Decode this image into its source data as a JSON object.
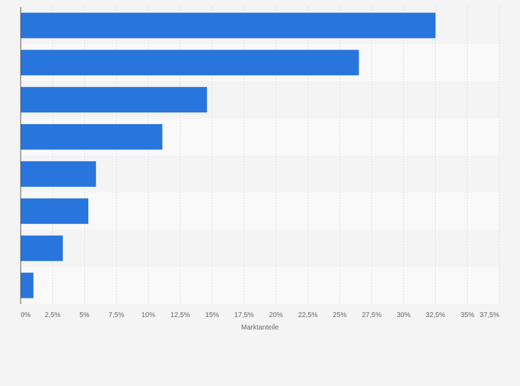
{
  "chart_data": {
    "type": "bar",
    "orientation": "horizontal",
    "title": "",
    "xlabel": "Marktanteile",
    "ylabel": "",
    "categories": [
      "",
      "",
      "",
      "",
      "",
      "",
      "",
      ""
    ],
    "values": [
      32.5,
      26.5,
      14.6,
      11.1,
      5.9,
      5.3,
      3.3,
      1.0
    ],
    "xlim": [
      0,
      37.5
    ],
    "x_ticks": [
      "0%",
      "2,5%",
      "5%",
      "7,5%",
      "10%",
      "12,5%",
      "15%",
      "17,5%",
      "20%",
      "22,5%",
      "25%",
      "27,5%",
      "30%",
      "32,5%",
      "35%",
      "37,5%"
    ],
    "grid": true,
    "bar_color": "#2876dd",
    "band_colors": [
      "#f4f4f4",
      "#f9f9f9"
    ],
    "gridline_color": "#dcdcdc",
    "axis_color": "#555555"
  }
}
